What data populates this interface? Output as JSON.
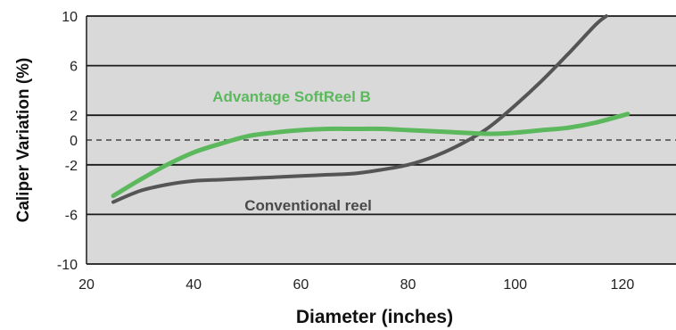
{
  "chart_data": {
    "type": "line",
    "title": "",
    "xlabel": "Diameter (inches)",
    "ylabel": "Caliper Variation (%)",
    "xlim": [
      20,
      130
    ],
    "ylim": [
      -10,
      10
    ],
    "x_ticks": [
      "20",
      "40",
      "60",
      "80",
      "100",
      "120"
    ],
    "y_ticks": [
      "10",
      "6",
      "2",
      "0",
      "-2",
      "-6",
      "-10"
    ],
    "grid": true,
    "background_color": "#d9d9d9",
    "zero_line": "dashed",
    "series": [
      {
        "name": "Advantage SoftReel B",
        "color": "#5cb85c",
        "x": [
          25,
          30,
          35,
          40,
          45,
          50,
          55,
          60,
          65,
          70,
          75,
          80,
          85,
          90,
          95,
          100,
          105,
          110,
          115,
          121
        ],
        "y": [
          -4.5,
          -3.2,
          -2.0,
          -1.0,
          -0.3,
          0.3,
          0.6,
          0.8,
          0.9,
          0.9,
          0.9,
          0.8,
          0.7,
          0.6,
          0.5,
          0.6,
          0.8,
          1.0,
          1.4,
          2.1
        ]
      },
      {
        "name": "Conventional reel",
        "color": "#555555",
        "x": [
          25,
          30,
          35,
          40,
          45,
          50,
          55,
          60,
          65,
          70,
          75,
          80,
          85,
          90,
          95,
          100,
          105,
          110,
          115,
          117
        ],
        "y": [
          -5.0,
          -4.1,
          -3.6,
          -3.3,
          -3.2,
          -3.1,
          -3.0,
          -2.9,
          -2.8,
          -2.7,
          -2.4,
          -2.0,
          -1.3,
          -0.3,
          1.0,
          2.8,
          4.8,
          7.0,
          9.3,
          10.0
        ]
      }
    ]
  }
}
